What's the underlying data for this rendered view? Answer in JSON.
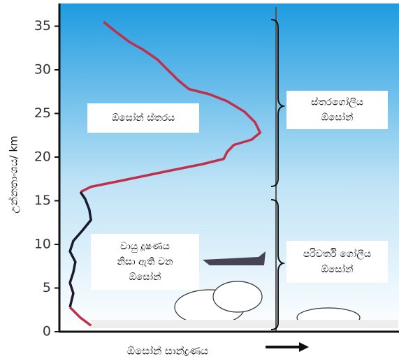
{
  "chart_data": {
    "type": "line",
    "ylabel": "උන්නතාංශය/ km",
    "xlabel": "ඕසෝන් සාන්ද්‍රණය",
    "xlim": [
      0,
      100
    ],
    "ylim": [
      0,
      37.6
    ],
    "yticks": [
      0,
      5,
      10,
      15,
      20,
      25,
      30,
      35
    ],
    "series": [
      {
        "color": "#c0304a",
        "x": [
          13.0,
          16.5,
          20.6,
          24.7,
          28.8,
          31.9,
          35.0,
          38.1,
          44.2,
          49.4,
          54.5,
          57.6,
          59.1,
          56.6,
          51.4,
          49.4,
          48.4,
          42.2,
          31.9,
          19.5,
          9.3,
          6.2,
          null,
          3.1,
          6.2,
          9.3
        ],
        "values": [
          35.5,
          34.4,
          33.2,
          32.3,
          31.2,
          30.0,
          28.8,
          27.8,
          27.2,
          26.4,
          25.2,
          24.0,
          22.8,
          22.0,
          21.4,
          20.6,
          19.8,
          19.2,
          18.4,
          17.4,
          16.6,
          16.0,
          null,
          2.8,
          1.6,
          0.7
        ]
      },
      {
        "color": "#1a1a2e",
        "x": [
          6.2,
          7.6,
          8.8,
          9.3,
          6.8,
          4.1,
          3.1,
          4.7,
          4.1,
          3.1,
          4.1,
          3.1
        ],
        "values": [
          16.0,
          15.2,
          14.0,
          12.8,
          11.6,
          10.4,
          9.2,
          8.0,
          6.8,
          5.6,
          4.4,
          2.8
        ]
      }
    ],
    "annotations": [
      {
        "lines": [
          "ඕසෝන් ස්තරය"
        ]
      },
      {
        "lines": [
          "ස්තරගෝලීය",
          "ඕසෝන්"
        ]
      },
      {
        "lines": [
          "වායු දූෂණය",
          "නිසා ඇති වන",
          "ඕසෝන්"
        ]
      },
      {
        "lines": [
          "පරිවර්ති ගෝලීය",
          "ඕසෝන්"
        ]
      }
    ]
  }
}
